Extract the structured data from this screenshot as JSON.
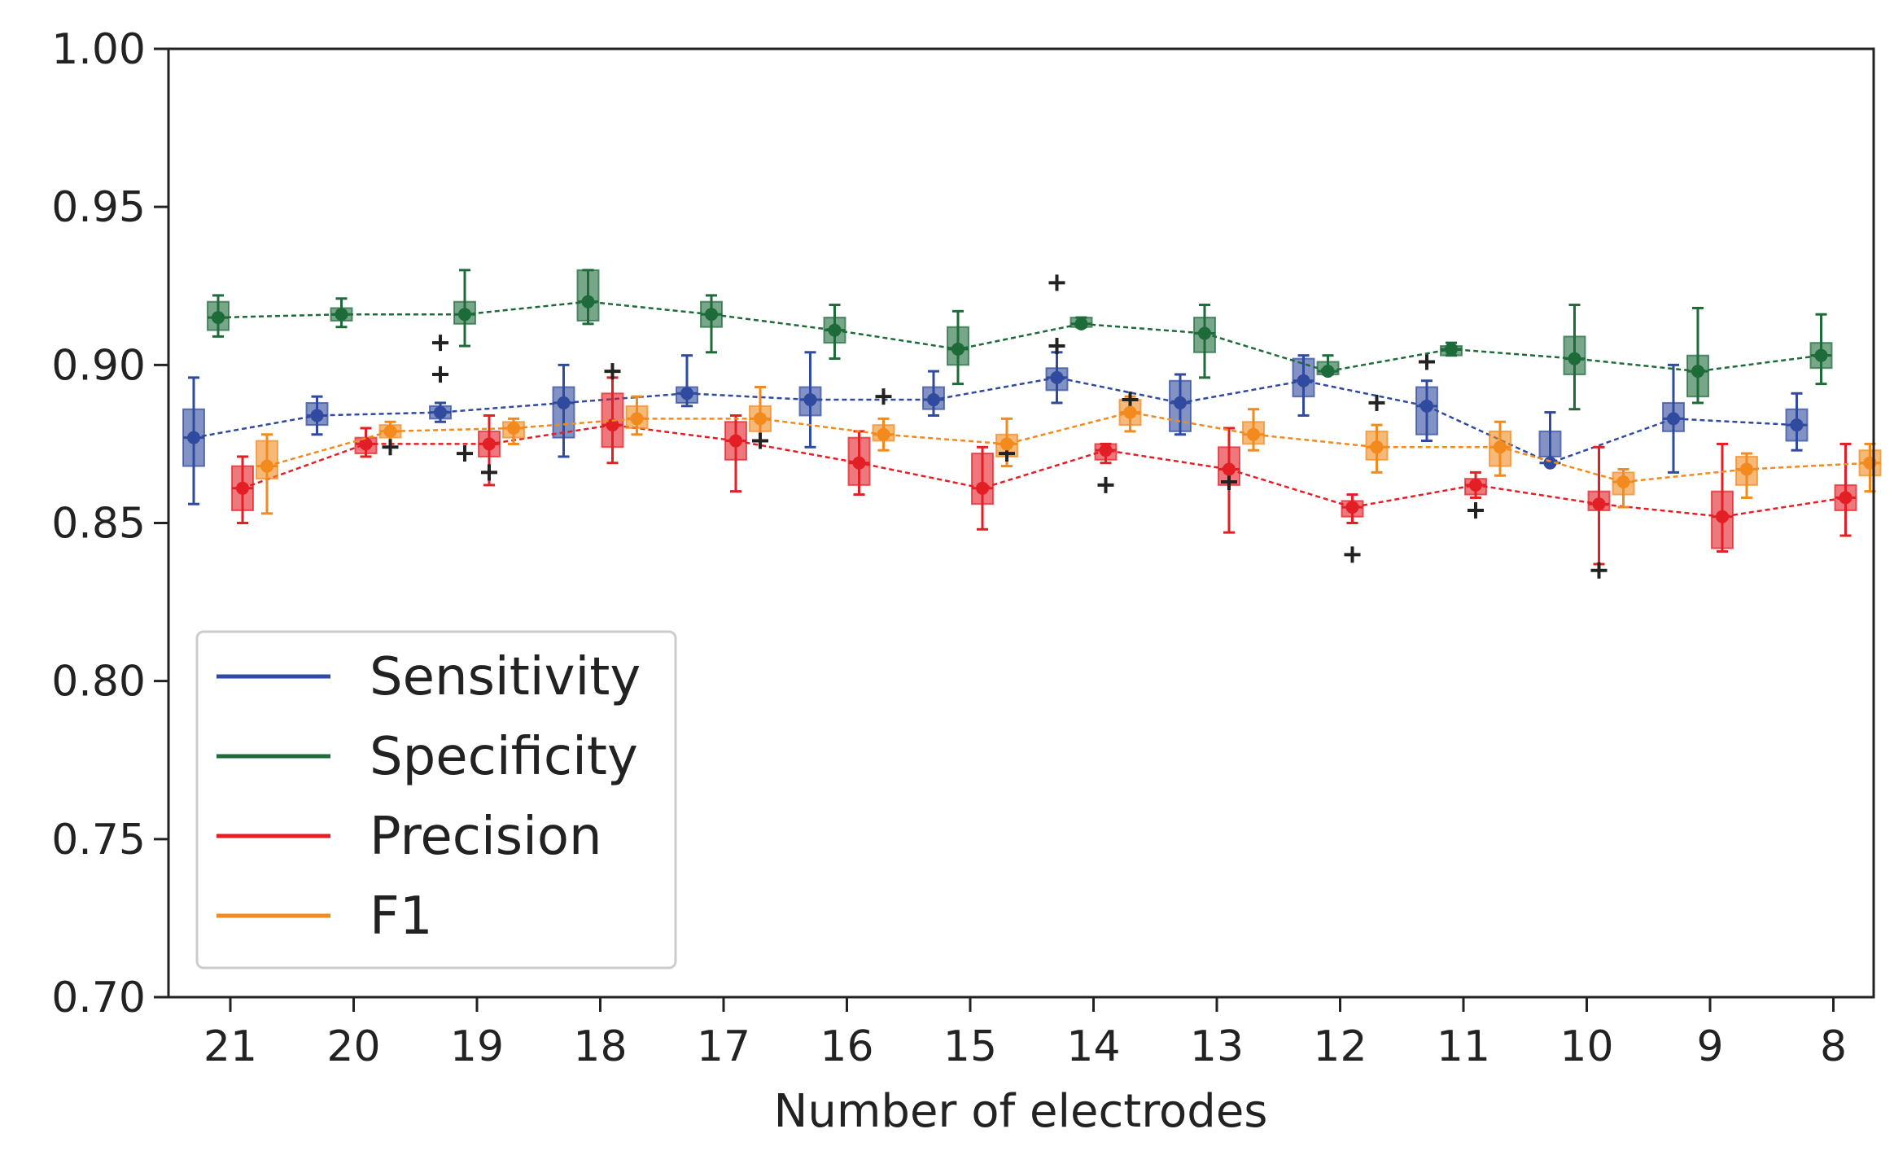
{
  "chart_data": {
    "type": "line",
    "title": "",
    "xlabel": "Number of electrodes",
    "ylabel": "",
    "categories": [
      "21",
      "20",
      "19",
      "18",
      "17",
      "16",
      "15",
      "14",
      "13",
      "12",
      "11",
      "10",
      "9",
      "8"
    ],
    "ylim": [
      0.7,
      1.0
    ],
    "yticks": [
      "0.70",
      "0.75",
      "0.80",
      "0.85",
      "0.90",
      "0.95",
      "1.00"
    ],
    "legend_location": "lower-left",
    "series": [
      {
        "name": "Sensitivity",
        "color": "#2f4a9e",
        "values": [
          0.877,
          0.884,
          0.885,
          0.888,
          0.891,
          0.889,
          0.889,
          0.896,
          0.888,
          0.895,
          0.887,
          0.869,
          0.883,
          0.881
        ],
        "box": [
          [
            0.868,
            0.886
          ],
          [
            0.881,
            0.888
          ],
          [
            0.883,
            0.887
          ],
          [
            0.877,
            0.893
          ],
          [
            0.888,
            0.893
          ],
          [
            0.884,
            0.893
          ],
          [
            0.886,
            0.893
          ],
          [
            0.892,
            0.899
          ],
          [
            0.879,
            0.895
          ],
          [
            0.89,
            0.902
          ],
          [
            0.878,
            0.893
          ],
          [
            0.871,
            0.879
          ],
          [
            0.879,
            0.888
          ],
          [
            0.876,
            0.886
          ]
        ],
        "whisker": [
          [
            0.856,
            0.896
          ],
          [
            0.878,
            0.89
          ],
          [
            0.882,
            0.888
          ],
          [
            0.871,
            0.9
          ],
          [
            0.887,
            0.903
          ],
          [
            0.874,
            0.904
          ],
          [
            0.884,
            0.898
          ],
          [
            0.888,
            0.904
          ],
          [
            0.878,
            0.897
          ],
          [
            0.884,
            0.903
          ],
          [
            0.876,
            0.895
          ],
          [
            0.869,
            0.885
          ],
          [
            0.866,
            0.9
          ],
          [
            0.873,
            0.891
          ]
        ],
        "outliers": [
          [],
          [],
          [
            0.897,
            0.907
          ],
          [],
          [],
          [],
          [],
          [
            0.906,
            0.926
          ],
          [],
          [],
          [
            0.901
          ],
          [],
          [],
          []
        ]
      },
      {
        "name": "Specificity",
        "color": "#1e6b3a",
        "values": [
          0.915,
          0.916,
          0.916,
          0.92,
          0.916,
          0.911,
          0.905,
          0.913,
          0.91,
          0.898,
          0.905,
          0.902,
          0.898,
          0.903
        ],
        "box": [
          [
            0.911,
            0.92
          ],
          [
            0.914,
            0.918
          ],
          [
            0.913,
            0.92
          ],
          [
            0.914,
            0.93
          ],
          [
            0.912,
            0.92
          ],
          [
            0.907,
            0.915
          ],
          [
            0.9,
            0.912
          ],
          [
            0.912,
            0.915
          ],
          [
            0.904,
            0.915
          ],
          [
            0.897,
            0.901
          ],
          [
            0.903,
            0.906
          ],
          [
            0.897,
            0.909
          ],
          [
            0.89,
            0.903
          ],
          [
            0.899,
            0.907
          ]
        ],
        "whisker": [
          [
            0.909,
            0.922
          ],
          [
            0.912,
            0.921
          ],
          [
            0.906,
            0.93
          ],
          [
            0.913,
            0.93
          ],
          [
            0.904,
            0.922
          ],
          [
            0.902,
            0.919
          ],
          [
            0.894,
            0.917
          ],
          [
            0.912,
            0.915
          ],
          [
            0.896,
            0.919
          ],
          [
            0.897,
            0.903
          ],
          [
            0.903,
            0.907
          ],
          [
            0.886,
            0.919
          ],
          [
            0.888,
            0.918
          ],
          [
            0.894,
            0.916
          ]
        ],
        "outliers": [
          [],
          [],
          [
            0.872
          ],
          [],
          [],
          [],
          [],
          [],
          [],
          [],
          [],
          [],
          [],
          []
        ]
      },
      {
        "name": "Precision",
        "color": "#e41e25",
        "values": [
          0.861,
          0.875,
          0.875,
          0.881,
          0.876,
          0.869,
          0.861,
          0.873,
          0.867,
          0.855,
          0.862,
          0.856,
          0.852,
          0.858
        ],
        "box": [
          [
            0.854,
            0.868
          ],
          [
            0.872,
            0.877
          ],
          [
            0.871,
            0.879
          ],
          [
            0.874,
            0.891
          ],
          [
            0.87,
            0.882
          ],
          [
            0.862,
            0.877
          ],
          [
            0.856,
            0.872
          ],
          [
            0.87,
            0.875
          ],
          [
            0.862,
            0.874
          ],
          [
            0.852,
            0.857
          ],
          [
            0.859,
            0.864
          ],
          [
            0.854,
            0.86
          ],
          [
            0.842,
            0.86
          ],
          [
            0.854,
            0.862
          ]
        ],
        "whisker": [
          [
            0.85,
            0.871
          ],
          [
            0.871,
            0.88
          ],
          [
            0.862,
            0.884
          ],
          [
            0.869,
            0.896
          ],
          [
            0.86,
            0.884
          ],
          [
            0.859,
            0.879
          ],
          [
            0.848,
            0.874
          ],
          [
            0.869,
            0.875
          ],
          [
            0.847,
            0.88
          ],
          [
            0.85,
            0.859
          ],
          [
            0.858,
            0.866
          ],
          [
            0.837,
            0.874
          ],
          [
            0.841,
            0.875
          ],
          [
            0.846,
            0.875
          ]
        ],
        "outliers": [
          [],
          [],
          [
            0.866
          ],
          [
            0.898
          ],
          [],
          [],
          [],
          [
            0.862
          ],
          [
            0.863
          ],
          [
            0.84
          ],
          [
            0.854
          ],
          [
            0.835
          ],
          [],
          []
        ]
      },
      {
        "name": "F1",
        "color": "#f28a1e",
        "values": [
          0.868,
          0.879,
          0.88,
          0.883,
          0.883,
          0.878,
          0.875,
          0.885,
          0.878,
          0.874,
          0.874,
          0.863,
          0.867,
          0.869
        ],
        "box": [
          [
            0.864,
            0.876
          ],
          [
            0.877,
            0.881
          ],
          [
            0.877,
            0.882
          ],
          [
            0.88,
            0.887
          ],
          [
            0.879,
            0.887
          ],
          [
            0.876,
            0.881
          ],
          [
            0.871,
            0.878
          ],
          [
            0.881,
            0.889
          ],
          [
            0.875,
            0.882
          ],
          [
            0.87,
            0.879
          ],
          [
            0.868,
            0.879
          ],
          [
            0.859,
            0.866
          ],
          [
            0.862,
            0.871
          ],
          [
            0.865,
            0.873
          ]
        ],
        "whisker": [
          [
            0.853,
            0.878
          ],
          [
            0.874,
            0.882
          ],
          [
            0.875,
            0.883
          ],
          [
            0.878,
            0.89
          ],
          [
            0.876,
            0.893
          ],
          [
            0.873,
            0.883
          ],
          [
            0.868,
            0.883
          ],
          [
            0.879,
            0.89
          ],
          [
            0.873,
            0.886
          ],
          [
            0.866,
            0.881
          ],
          [
            0.865,
            0.882
          ],
          [
            0.855,
            0.867
          ],
          [
            0.858,
            0.872
          ],
          [
            0.86,
            0.875
          ]
        ],
        "outliers": [
          [],
          [
            0.874
          ],
          [],
          [],
          [
            0.876
          ],
          [
            0.89
          ],
          [
            0.872
          ],
          [
            0.889
          ],
          [],
          [
            0.888
          ],
          [],
          [],
          [],
          []
        ]
      }
    ]
  }
}
